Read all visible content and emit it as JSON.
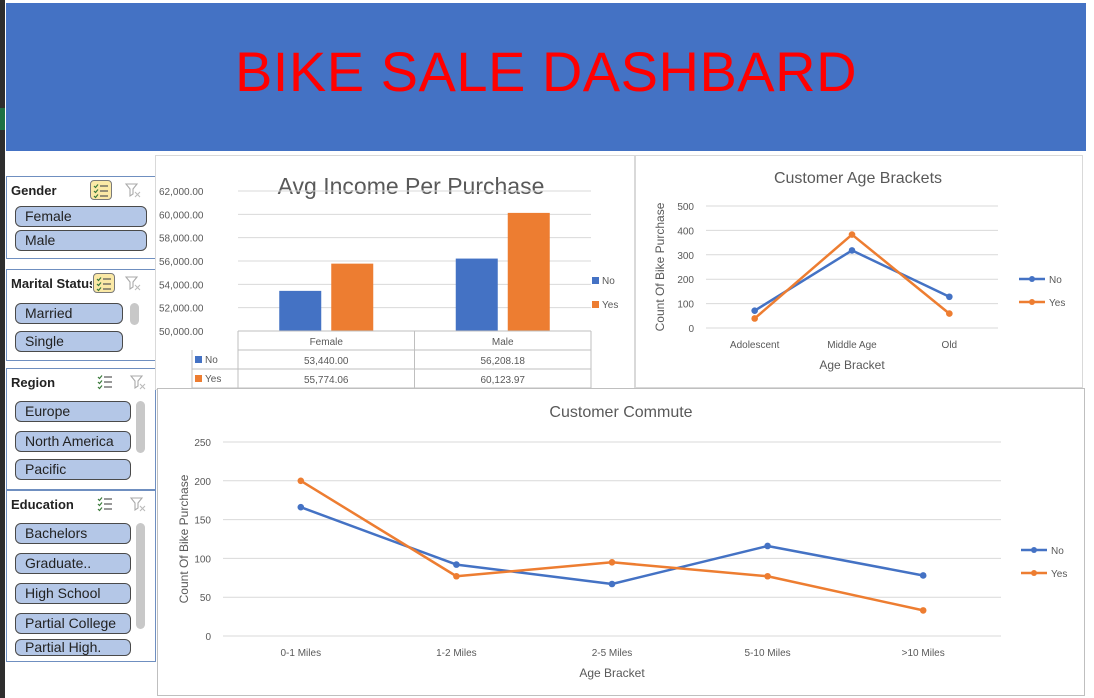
{
  "header": {
    "title": "BIKE SALE DASHBARD"
  },
  "slicers": {
    "gender": {
      "title": "Gender",
      "items": [
        "Female",
        "Male"
      ]
    },
    "marital": {
      "title": "Marital Status",
      "items": [
        "Married",
        "Single"
      ]
    },
    "region": {
      "title": "Region",
      "items": [
        "Europe",
        "North America",
        "Pacific"
      ]
    },
    "education": {
      "title": "Education",
      "items": [
        "Bachelors",
        "Graduate..",
        "High School",
        "Partial College",
        "Partial High."
      ]
    }
  },
  "colors": {
    "no": "#4472c4",
    "yes": "#ed7d31",
    "banner": "#4472c4",
    "title_red": "#ff0000",
    "slicer_item": "#b4c7e7"
  },
  "chart_data": [
    {
      "type": "bar",
      "title": "Avg Income Per Purchase",
      "categories": [
        "Female",
        "Male"
      ],
      "series": [
        {
          "name": "No",
          "values": [
            53440.0,
            56208.18
          ],
          "labels": [
            "53,440.00",
            "56,208.18"
          ]
        },
        {
          "name": "Yes",
          "values": [
            55774.06,
            60123.97
          ],
          "labels": [
            "55,774.06",
            "60,123.97"
          ]
        }
      ],
      "ylim": [
        50000,
        62000
      ],
      "yticks": [
        "50,000.00",
        "52,000.00",
        "54,000.00",
        "56,000.00",
        "58,000.00",
        "60,000.00",
        "62,000.00"
      ],
      "legend": "right",
      "data_table": true
    },
    {
      "type": "line",
      "title": "Customer Age Brackets",
      "xlabel": "Age Bracket",
      "ylabel": "Count Of Bike Purchase",
      "categories": [
        "Adolescent",
        "Middle Age",
        "Old"
      ],
      "series": [
        {
          "name": "No",
          "values": [
            71,
            318,
            128
          ]
        },
        {
          "name": "Yes",
          "values": [
            39,
            383,
            59
          ]
        }
      ],
      "ylim": [
        0,
        500
      ],
      "yticks": [
        "0",
        "100",
        "200",
        "300",
        "400",
        "500"
      ],
      "legend": "right",
      "grid": true
    },
    {
      "type": "line",
      "title": "Customer Commute",
      "xlabel": "Age Bracket",
      "ylabel": "Count Of Bike Purchase",
      "categories": [
        "0-1 Miles",
        "1-2 Miles",
        "2-5 Miles",
        "5-10 Miles",
        ">10 Miles"
      ],
      "series": [
        {
          "name": "No",
          "values": [
            166,
            92,
            67,
            116,
            78
          ]
        },
        {
          "name": "Yes",
          "values": [
            200,
            77,
            95,
            77,
            33
          ]
        }
      ],
      "ylim": [
        0,
        250
      ],
      "yticks": [
        "0",
        "50",
        "100",
        "150",
        "200",
        "250"
      ],
      "legend": "right",
      "grid": true
    }
  ]
}
